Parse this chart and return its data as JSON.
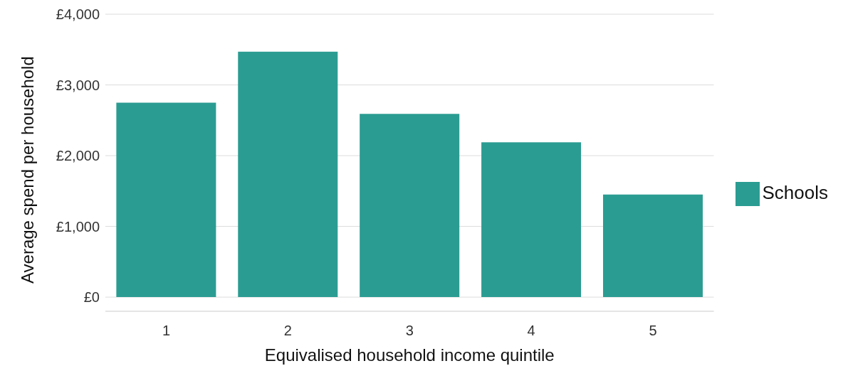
{
  "chart_data": {
    "type": "bar",
    "xlabel": "Equivalised household income quintile",
    "ylabel": "Average spend per household",
    "categories": [
      "1",
      "2",
      "3",
      "4",
      "5"
    ],
    "series": [
      {
        "name": "Schools",
        "color": "#2b9c92",
        "values": [
          2750,
          3470,
          2590,
          2190,
          1450
        ]
      }
    ],
    "ylim": [
      -200,
      4000
    ],
    "yticks": [
      {
        "value": 0,
        "label": "£0"
      },
      {
        "value": 1000,
        "label": "£1,000"
      },
      {
        "value": 2000,
        "label": "£2,000"
      },
      {
        "value": 3000,
        "label": "£3,000"
      },
      {
        "value": 4000,
        "label": "£4,000"
      }
    ],
    "grid": "y",
    "legend": "right"
  }
}
